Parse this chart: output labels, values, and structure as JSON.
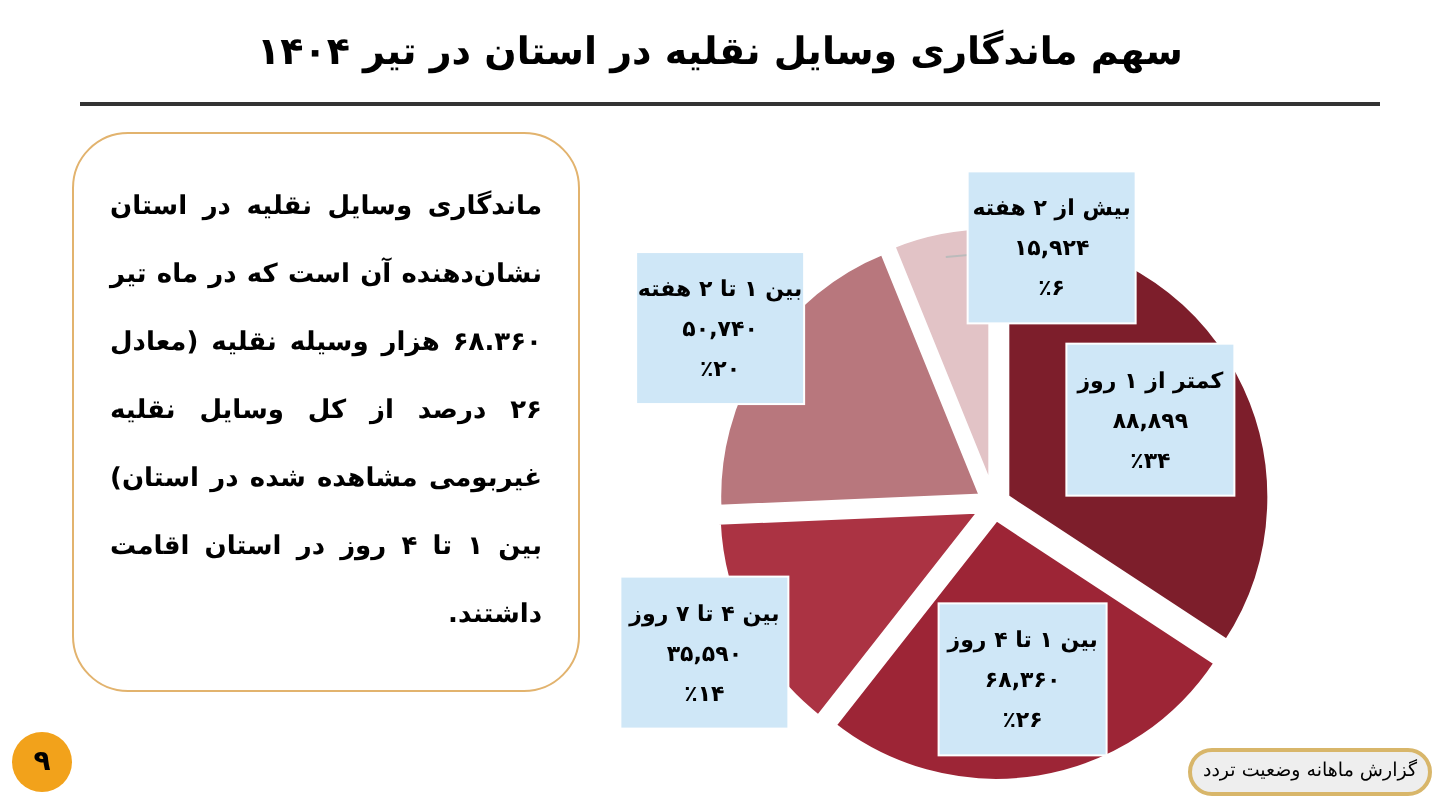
{
  "chart_data": {
    "type": "pie",
    "title": "سهم ماندگاری وسایل نقلیه در استان در تیر ۱۴۰۴",
    "categories": [
      "کمتر از ۱ روز",
      "بین ۱ تا ۴ روز",
      "بین ۴ تا ۷ روز",
      "بین ۱ تا ۲ هفته",
      "بیش از ۲ هفته"
    ],
    "values": [
      88899,
      68360,
      35590,
      50740,
      15924
    ],
    "value_labels": [
      "۸۸,۸۹۹\n٪۳۴",
      "۶۸,۳۶۰\n٪۲۶",
      "۳۵,۵۹۰\n٪۱۴",
      "۵۰,۷۴۰\n٪۲۰",
      "۱۵,۹۲۴\n٪۶"
    ],
    "colors": [
      "#7d1e2b",
      "#9d2536",
      "#ab3343",
      "#b8777d",
      "#e2c3c6"
    ],
    "legend": false,
    "annotations": [
      "ماندگاری وسایل نقلیه در استان نشان‌دهنده آن است که در ماه تیر ۶۸.۳۶۰ هزار وسیله نقلیه (معادل ۲۶ درصد از کل وسایل نقلیه غیربومی مشاهده شده در استان) بین ۱ تا ۴ روز در استان اقامت داشتند.",
      "گزارش ماهانه وضعیت تردد",
      "۹"
    ]
  }
}
